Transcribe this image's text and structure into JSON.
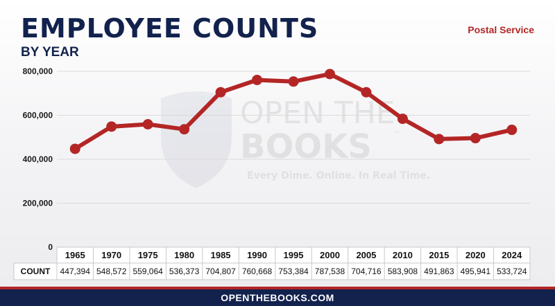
{
  "header": {
    "title": "EMPLOYEE COUNTS",
    "subtitle": "BY YEAR",
    "tag": "Postal Service"
  },
  "watermark": {
    "line1": "OPEN THE",
    "line2": "BOOKS",
    "tm": "™",
    "tagline": "Every Dime. Online. In Real Time."
  },
  "table": {
    "row_label": "COUNT"
  },
  "footer": {
    "url": "OPENTHEBOOKS.COM"
  },
  "colors": {
    "line": "#b32625",
    "navy": "#12224d",
    "grid": "#dadada"
  },
  "chart_data": {
    "type": "line",
    "title": "EMPLOYEE COUNTS",
    "subtitle": "BY YEAR",
    "categories": [
      "1965",
      "1970",
      "1975",
      "1980",
      "1985",
      "1990",
      "1995",
      "2000",
      "2005",
      "2010",
      "2015",
      "2020",
      "2024"
    ],
    "series": [
      {
        "name": "Postal Service",
        "values": [
          447394,
          548572,
          559064,
          536373,
          704807,
          760668,
          753384,
          787538,
          704716,
          583908,
          491863,
          495941,
          533724
        ],
        "labels": [
          "447,394",
          "548,572",
          "559,064",
          "536,373",
          "704,807",
          "760,668",
          "753,384",
          "787,538",
          "704,716",
          "583,908",
          "491,863",
          "495,941",
          "533,724"
        ]
      }
    ],
    "yticks": [
      0,
      200000,
      400000,
      600000,
      800000
    ],
    "ytick_labels": [
      "0",
      "200,000",
      "400,000",
      "600,000",
      "800,000"
    ],
    "ylim": [
      0,
      800000
    ],
    "grid": true,
    "legend": "none"
  }
}
